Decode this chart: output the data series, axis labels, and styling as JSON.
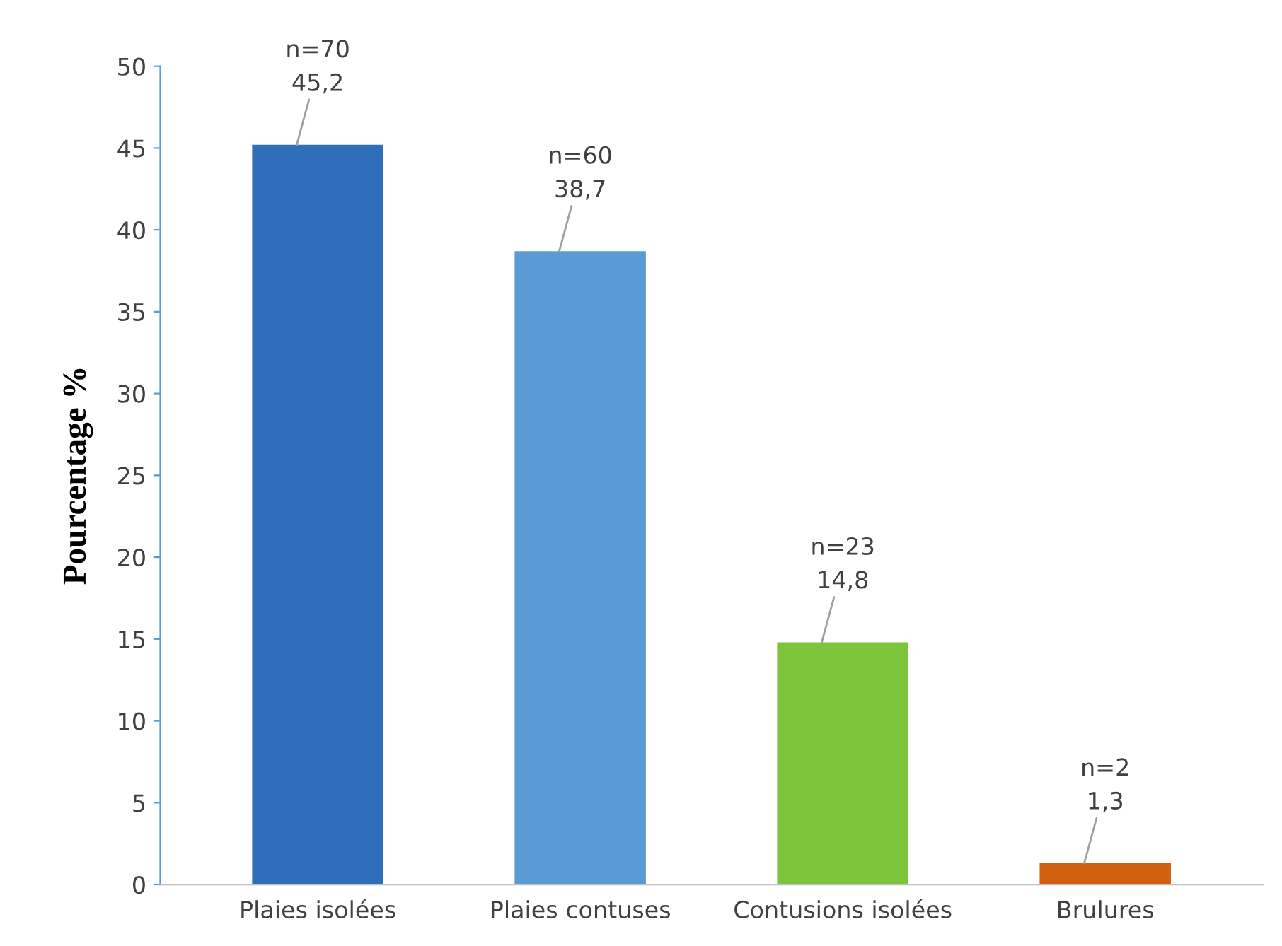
{
  "chart_data": {
    "type": "bar",
    "ylabel": "Pourcentage %",
    "categories": [
      "Plaies isolées",
      "Plaies contuses",
      "Contusions isolées",
      "Brulures"
    ],
    "values": [
      45.2,
      38.7,
      14.8,
      1.3
    ],
    "colors": [
      "#2f6fba",
      "#5b9bd5",
      "#7cc43a",
      "#d2600e"
    ],
    "value_labels": [
      "n=70\n45,2",
      "n=60\n38,7",
      "n=23\n14,8",
      "n=2\n1,3"
    ],
    "ylim": [
      0,
      50
    ],
    "yticks": [
      0,
      5,
      10,
      15,
      20,
      25,
      30,
      35,
      40,
      45,
      50
    ],
    "grid": false,
    "legend": false
  }
}
